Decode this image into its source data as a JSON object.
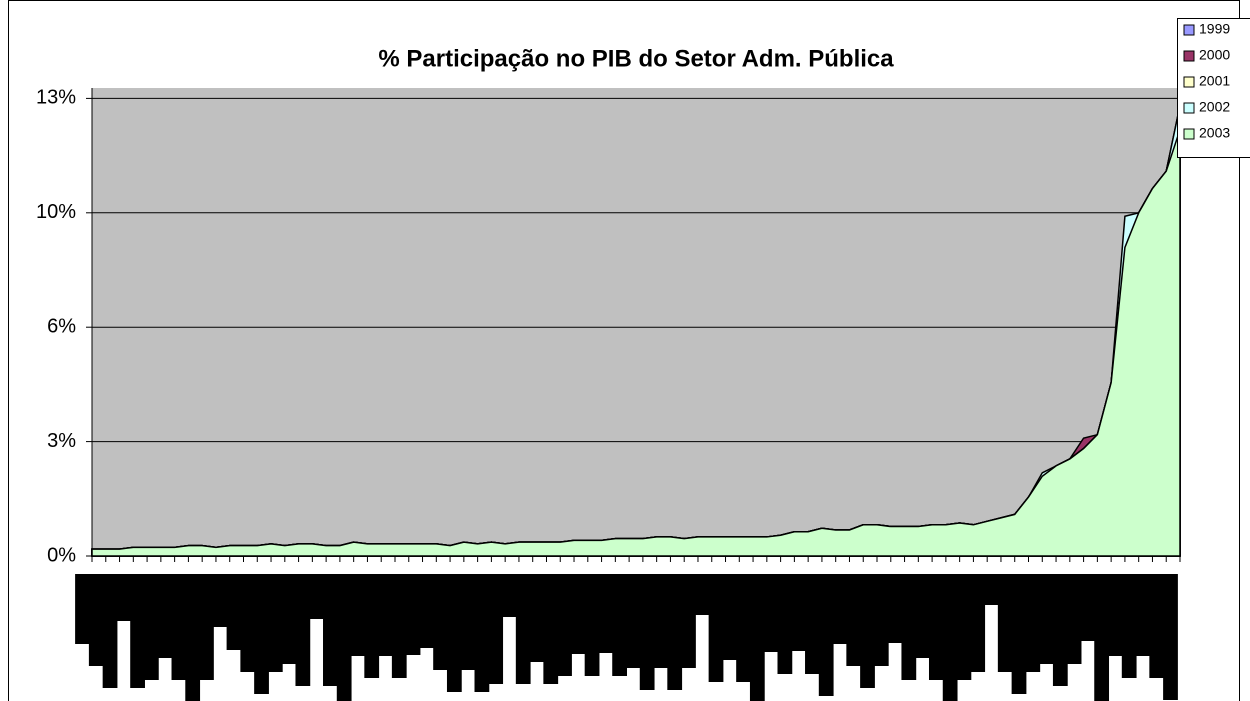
{
  "chart_data": {
    "type": "area",
    "title": "% Participação no PIB do Setor Adm. Pública",
    "categories": [
      null,
      null,
      null,
      null,
      null,
      null,
      null,
      null,
      null,
      null,
      null,
      null,
      null,
      null,
      null,
      null,
      null,
      null,
      null,
      null,
      null,
      null,
      null,
      null,
      null,
      null,
      null,
      null,
      null,
      null,
      null,
      null,
      null,
      null,
      null,
      null,
      null,
      null,
      null,
      null,
      null,
      null,
      null,
      null,
      null,
      null,
      null,
      null,
      null,
      null,
      null,
      null,
      null,
      null,
      null,
      null,
      null,
      null,
      null,
      null,
      null,
      null,
      null,
      null,
      null,
      null,
      null,
      null,
      null,
      null,
      null,
      null,
      null,
      null,
      null,
      null,
      null,
      null,
      null,
      null
    ],
    "series": [
      {
        "name": "1999",
        "color": "#9999ff",
        "values": [
          0.2,
          0.2,
          0.2,
          0.25,
          0.25,
          0.25,
          0.25,
          0.3,
          0.3,
          0.25,
          0.3,
          0.3,
          0.3,
          0.35,
          0.3,
          0.35,
          0.35,
          0.3,
          0.3,
          0.4,
          0.35,
          0.35,
          0.35,
          0.35,
          0.35,
          0.35,
          0.3,
          0.4,
          0.35,
          0.4,
          0.35,
          0.4,
          0.4,
          0.4,
          0.4,
          0.45,
          0.45,
          0.45,
          0.5,
          0.5,
          0.5,
          0.55,
          0.55,
          0.5,
          0.55,
          0.55,
          0.55,
          0.55,
          0.55,
          0.55,
          0.6,
          0.7,
          0.7,
          0.8,
          0.75,
          0.75,
          0.9,
          0.9,
          0.85,
          0.85,
          0.85,
          0.9,
          0.9,
          0.95,
          0.9,
          1.0,
          1.1,
          1.2,
          1.7,
          2.3,
          2.6,
          2.8,
          3.1,
          3.5,
          5.0,
          8.9,
          9.9,
          10.6,
          11.1,
          12.8
        ]
      },
      {
        "name": "2000",
        "color": "#993366",
        "values": [
          0.2,
          0.2,
          0.2,
          0.25,
          0.25,
          0.25,
          0.25,
          0.3,
          0.3,
          0.25,
          0.3,
          0.3,
          0.3,
          0.35,
          0.3,
          0.35,
          0.35,
          0.3,
          0.3,
          0.4,
          0.35,
          0.35,
          0.35,
          0.35,
          0.35,
          0.35,
          0.3,
          0.4,
          0.35,
          0.4,
          0.35,
          0.4,
          0.4,
          0.4,
          0.4,
          0.45,
          0.45,
          0.45,
          0.5,
          0.5,
          0.5,
          0.55,
          0.55,
          0.5,
          0.55,
          0.55,
          0.55,
          0.55,
          0.55,
          0.55,
          0.6,
          0.7,
          0.7,
          0.8,
          0.75,
          0.75,
          0.9,
          0.9,
          0.85,
          0.85,
          0.85,
          0.9,
          0.9,
          0.95,
          0.9,
          1.0,
          1.1,
          1.2,
          1.7,
          2.3,
          2.6,
          2.8,
          3.4,
          3.5,
          5.0,
          8.9,
          9.9,
          10.6,
          11.1,
          13.0
        ]
      },
      {
        "name": "2001",
        "color": "#ffffcc",
        "values": [
          0.2,
          0.2,
          0.2,
          0.25,
          0.25,
          0.25,
          0.25,
          0.3,
          0.3,
          0.25,
          0.3,
          0.3,
          0.3,
          0.35,
          0.3,
          0.35,
          0.35,
          0.3,
          0.3,
          0.4,
          0.35,
          0.35,
          0.35,
          0.35,
          0.35,
          0.35,
          0.3,
          0.4,
          0.35,
          0.4,
          0.35,
          0.4,
          0.4,
          0.4,
          0.4,
          0.45,
          0.45,
          0.45,
          0.5,
          0.5,
          0.5,
          0.55,
          0.55,
          0.5,
          0.55,
          0.55,
          0.55,
          0.55,
          0.55,
          0.55,
          0.6,
          0.7,
          0.7,
          0.8,
          0.75,
          0.75,
          0.9,
          0.9,
          0.85,
          0.85,
          0.85,
          0.9,
          0.9,
          0.95,
          0.9,
          1.0,
          1.1,
          1.2,
          1.7,
          2.3,
          2.6,
          2.8,
          3.1,
          3.5,
          5.0,
          8.9,
          9.9,
          10.6,
          11.1,
          12.8
        ]
      },
      {
        "name": "2002",
        "color": "#ccffff",
        "values": [
          0.2,
          0.2,
          0.2,
          0.25,
          0.25,
          0.25,
          0.25,
          0.3,
          0.3,
          0.25,
          0.3,
          0.3,
          0.3,
          0.35,
          0.3,
          0.35,
          0.35,
          0.3,
          0.3,
          0.4,
          0.35,
          0.35,
          0.35,
          0.35,
          0.35,
          0.35,
          0.3,
          0.4,
          0.35,
          0.4,
          0.35,
          0.4,
          0.4,
          0.4,
          0.4,
          0.45,
          0.45,
          0.45,
          0.5,
          0.5,
          0.5,
          0.55,
          0.55,
          0.5,
          0.55,
          0.55,
          0.55,
          0.55,
          0.55,
          0.55,
          0.6,
          0.7,
          0.7,
          0.8,
          0.75,
          0.75,
          0.9,
          0.9,
          0.85,
          0.85,
          0.85,
          0.9,
          0.9,
          0.95,
          0.9,
          1.0,
          1.1,
          1.2,
          1.7,
          2.4,
          2.6,
          2.8,
          3.1,
          3.5,
          5.0,
          9.8,
          9.9,
          10.6,
          11.1,
          13.0
        ]
      },
      {
        "name": "2003",
        "color": "#ccffcc",
        "values": [
          0.2,
          0.2,
          0.2,
          0.25,
          0.25,
          0.25,
          0.25,
          0.3,
          0.3,
          0.25,
          0.3,
          0.3,
          0.3,
          0.35,
          0.3,
          0.35,
          0.35,
          0.3,
          0.3,
          0.4,
          0.35,
          0.35,
          0.35,
          0.35,
          0.35,
          0.35,
          0.3,
          0.4,
          0.35,
          0.4,
          0.35,
          0.4,
          0.4,
          0.4,
          0.4,
          0.45,
          0.45,
          0.45,
          0.5,
          0.5,
          0.5,
          0.55,
          0.55,
          0.5,
          0.55,
          0.55,
          0.55,
          0.55,
          0.55,
          0.55,
          0.6,
          0.7,
          0.7,
          0.8,
          0.75,
          0.75,
          0.9,
          0.9,
          0.85,
          0.85,
          0.85,
          0.9,
          0.9,
          0.95,
          0.9,
          1.0,
          1.1,
          1.2,
          1.7,
          2.3,
          2.6,
          2.8,
          3.1,
          3.5,
          5.0,
          8.9,
          9.9,
          10.6,
          11.1,
          12.3
        ]
      }
    ],
    "ylim": [
      0,
      13.5
    ],
    "yticks": [
      {
        "value": 0,
        "label": "0%"
      },
      {
        "value": 3.3,
        "label": "3%"
      },
      {
        "value": 6.6,
        "label": "6%"
      },
      {
        "value": 9.9,
        "label": "10%"
      },
      {
        "value": 13.2,
        "label": "13%"
      }
    ],
    "grid": true,
    "plot_background": "#c0c0c0",
    "legend": "upper right"
  }
}
